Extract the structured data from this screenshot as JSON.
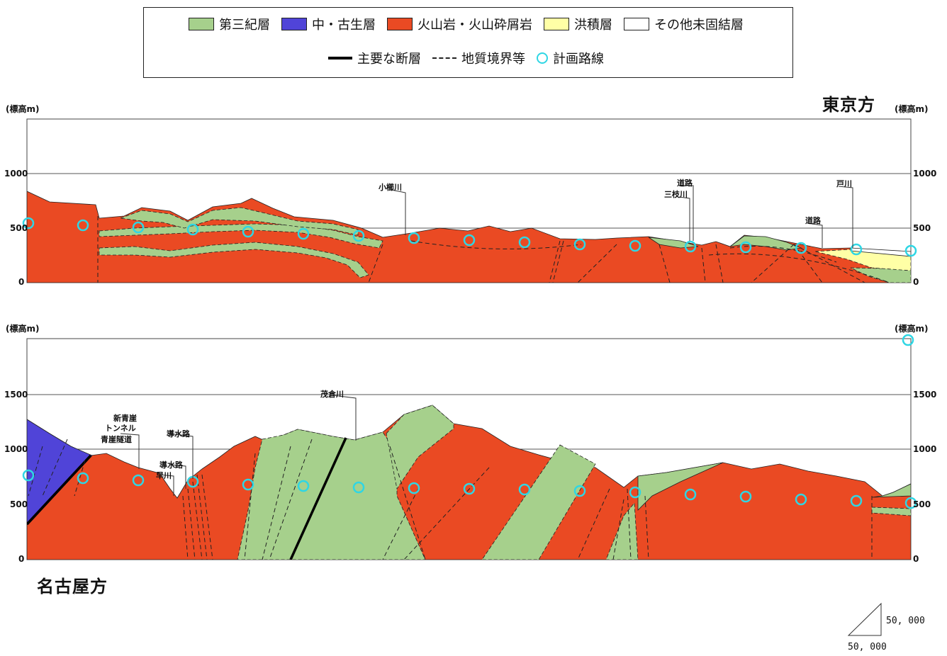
{
  "legend": {
    "items": [
      {
        "label": "第三紀層",
        "color": "#a6d08c"
      },
      {
        "label": "中・古生層",
        "color": "#5044d8"
      },
      {
        "label": "火山岩・火山砕屑岩",
        "color": "#ea4a23"
      },
      {
        "label": "洪積層",
        "color": "#ffffa6"
      },
      {
        "label": "その他未固結層",
        "color": "#ffffff"
      }
    ],
    "lines": [
      {
        "label": "主要な断層",
        "style": "solid"
      },
      {
        "label": "地質境界等",
        "style": "dashed"
      },
      {
        "label": "計画路線",
        "style": "circle",
        "color": "#2fd6e4"
      }
    ]
  },
  "top_profile": {
    "direction": "東京方",
    "unit_left": "(標高m)",
    "unit_right": "(標高m)",
    "ticks": [
      "1000",
      "500",
      "0"
    ],
    "rivers": [
      "小櫛川",
      "道路",
      "三枝川",
      "道路",
      "戸川"
    ]
  },
  "bottom_profile": {
    "direction": "名古屋方",
    "unit_left": "(標高m)",
    "unit_right": "(標高m)",
    "ticks": [
      "1500",
      "1000",
      "500",
      "0"
    ],
    "labels": [
      "新青崖",
      "トンネル",
      "青崖隧道",
      "導水路",
      "導水路",
      "早川",
      "茂倉川"
    ]
  },
  "scale": {
    "horizontal": "50, 000",
    "vertical": "50, 000"
  }
}
